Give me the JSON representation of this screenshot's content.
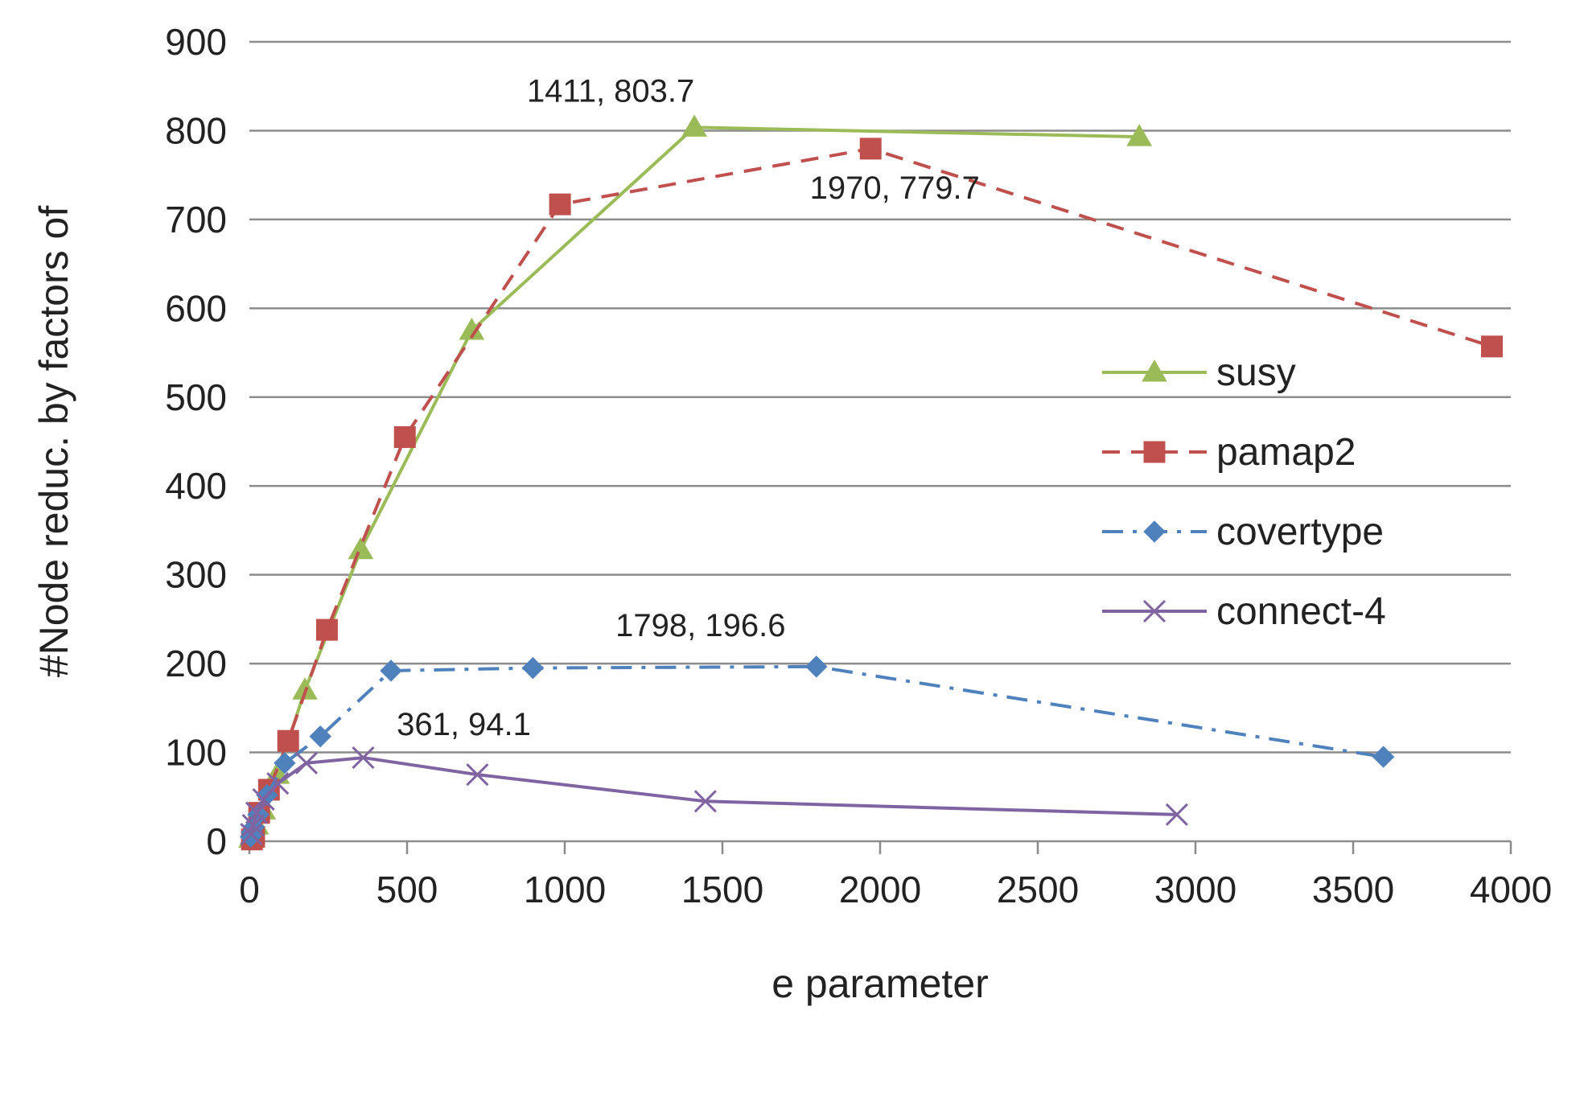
{
  "chart_data": {
    "type": "line",
    "xlabel": "e parameter",
    "ylabel": "#Node reduc. by factors of",
    "xlim": [
      0,
      4000
    ],
    "ylim": [
      0,
      900
    ],
    "x_ticks": [
      "0",
      "500",
      "1000",
      "1500",
      "2000",
      "2500",
      "3000",
      "3500",
      "4000"
    ],
    "y_ticks": [
      "0",
      "100",
      "200",
      "300",
      "400",
      "500",
      "600",
      "700",
      "800",
      "900"
    ],
    "grid": "horizontal",
    "legend_position": "right",
    "series": [
      {
        "name": "susy",
        "color": "#9BBB59",
        "dash": "solid",
        "marker": "triangle",
        "x": [
          5,
          11,
          22,
          44,
          88,
          176,
          353,
          705,
          1411,
          2822
        ],
        "y": [
          3,
          8,
          18,
          35,
          75,
          170,
          328,
          575,
          803.7,
          793
        ]
      },
      {
        "name": "pamap2",
        "color": "#C0504D",
        "dash": "dashed",
        "marker": "square",
        "x": [
          8,
          15,
          31,
          62,
          123,
          246,
          493,
          985,
          1970,
          3940
        ],
        "y": [
          2,
          5,
          32,
          58,
          113,
          238,
          455,
          717,
          779.7,
          557
        ]
      },
      {
        "name": "covertype",
        "color": "#4F81BD",
        "dash": "dashdot",
        "marker": "diamond",
        "x": [
          4,
          7,
          14,
          28,
          56,
          112,
          225,
          449,
          899,
          1798,
          3596
        ],
        "y": [
          5,
          10,
          16,
          30,
          52,
          88,
          118,
          192,
          195,
          196.6,
          95
        ]
      },
      {
        "name": "connect-4",
        "color": "#8064A2",
        "dash": "solid",
        "marker": "x",
        "x": [
          6,
          12,
          23,
          45,
          90,
          181,
          361,
          723,
          1446,
          2941
        ],
        "y": [
          8,
          18,
          32,
          47,
          65,
          88,
          94.1,
          75,
          45,
          30
        ]
      }
    ],
    "annotations": [
      {
        "text": "1411, 803.7",
        "x": 1411,
        "y": 803.7
      },
      {
        "text": "1970, 779.7",
        "x": 1970,
        "y": 779.7
      },
      {
        "text": "1798, 196.6",
        "x": 1798,
        "y": 196.6
      },
      {
        "text": "361, 94.1",
        "x": 361,
        "y": 94.1
      }
    ]
  }
}
